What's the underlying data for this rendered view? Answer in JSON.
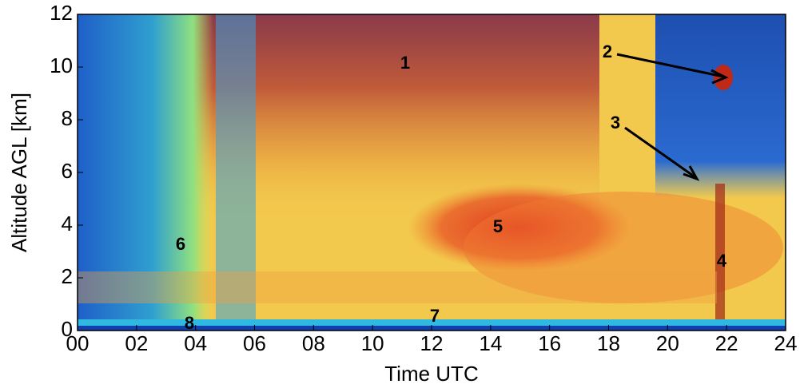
{
  "chart_data": {
    "type": "heatmap",
    "xlabel": "Time UTC",
    "ylabel": "Altitude AGL [km]",
    "xlim": [
      0,
      24
    ],
    "ylim": [
      0,
      12
    ],
    "xticks": [
      {
        "value": 0,
        "label": "00"
      },
      {
        "value": 2,
        "label": "02"
      },
      {
        "value": 4,
        "label": "04"
      },
      {
        "value": 6,
        "label": "06"
      },
      {
        "value": 8,
        "label": "08"
      },
      10,
      12,
      14,
      16,
      18,
      20,
      22,
      24
    ],
    "yticks": [
      0,
      2,
      4,
      6,
      8,
      10,
      12
    ],
    "annotations": [
      "1",
      "2",
      "3",
      "4",
      "5",
      "6",
      "7",
      "8"
    ]
  }
}
